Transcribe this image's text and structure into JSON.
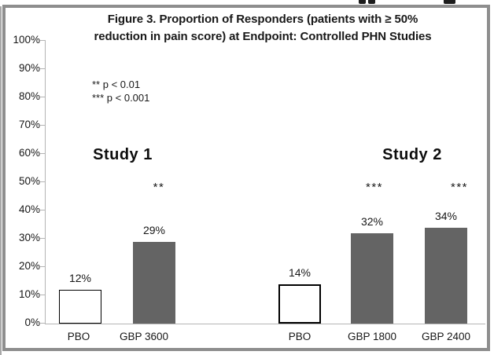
{
  "artifacts": {
    "cropped_text_fragments_at_top": true
  },
  "figure": {
    "border_color": "#8e8e8e",
    "background": "#ffffff"
  },
  "chart_data": {
    "type": "bar",
    "title": "Figure 3. Proportion of Responders (patients with ≥ 50% reduction in pain score) at Endpoint: Controlled PHN Studies",
    "title_lines": [
      "Figure 3. Proportion of Responders (patients with ≥ 50%",
      "reduction in pain score) at Endpoint: Controlled PHN Studies"
    ],
    "xlabel": "",
    "ylabel": "",
    "ylim": [
      0,
      100
    ],
    "ytick_labels": [
      "0%",
      "10%",
      "20%",
      "30%",
      "40%",
      "50%",
      "60%",
      "70%",
      "80%",
      "90%",
      "100%"
    ],
    "grid": false,
    "legend_position": "upper-left",
    "legend_notes": [
      "** p < 0.01",
      "*** p < 0.001"
    ],
    "bar_colors": {
      "placebo_fill": "#ffffff",
      "active_fill": "#646464",
      "outline": "#000000"
    },
    "groups": [
      {
        "name": "Study 1",
        "bars": [
          {
            "label": "PBO",
            "value": 12,
            "value_label": "12%",
            "fill": "#ffffff",
            "significance": ""
          },
          {
            "label": "GBP 3600",
            "value": 29,
            "value_label": "29%",
            "fill": "#646464",
            "significance": "**"
          }
        ]
      },
      {
        "name": "Study 2",
        "bars": [
          {
            "label": "PBO",
            "value": 14,
            "value_label": "14%",
            "fill": "#ffffff",
            "significance": ""
          },
          {
            "label": "GBP 1800",
            "value": 32,
            "value_label": "32%",
            "fill": "#646464",
            "significance": "***"
          },
          {
            "label": "GBP 2400",
            "value": 34,
            "value_label": "34%",
            "fill": "#646464",
            "significance": "***"
          }
        ]
      }
    ]
  }
}
